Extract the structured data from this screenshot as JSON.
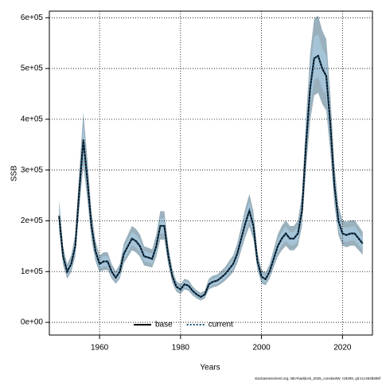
{
  "chart_data": {
    "type": "line",
    "xlabel": "Years",
    "ylabel": "SSB",
    "footer": "stockassessment.org, NEAhaddock_2025_constantW, r19259, git:1cc464b806f",
    "x": [
      1950,
      1951,
      1952,
      1953,
      1954,
      1955,
      1956,
      1957,
      1958,
      1959,
      1960,
      1961,
      1962,
      1963,
      1964,
      1965,
      1966,
      1967,
      1968,
      1969,
      1970,
      1971,
      1972,
      1973,
      1974,
      1975,
      1976,
      1977,
      1978,
      1979,
      1980,
      1981,
      1982,
      1983,
      1984,
      1985,
      1986,
      1987,
      1988,
      1989,
      1990,
      1991,
      1992,
      1993,
      1994,
      1995,
      1996,
      1997,
      1998,
      1999,
      2000,
      2001,
      2002,
      2003,
      2004,
      2005,
      2006,
      2007,
      2008,
      2009,
      2010,
      2011,
      2012,
      2013,
      2014,
      2015,
      2016,
      2017,
      2018,
      2019,
      2020,
      2021,
      2022,
      2023,
      2024,
      2025
    ],
    "series": [
      {
        "name": "base",
        "color": "#000000",
        "linestyle": "solid",
        "band_color": "#8fa8b6",
        "values": [
          210000,
          130000,
          100000,
          115000,
          150000,
          260000,
          360000,
          280000,
          190000,
          140000,
          115000,
          120000,
          120000,
          100000,
          88000,
          100000,
          135000,
          150000,
          165000,
          160000,
          150000,
          130000,
          128000,
          125000,
          150000,
          190000,
          190000,
          130000,
          90000,
          70000,
          65000,
          75000,
          72000,
          62000,
          55000,
          50000,
          55000,
          75000,
          80000,
          82000,
          88000,
          95000,
          105000,
          115000,
          135000,
          165000,
          195000,
          220000,
          190000,
          120000,
          90000,
          85000,
          100000,
          125000,
          150000,
          165000,
          175000,
          165000,
          165000,
          175000,
          220000,
          350000,
          460000,
          520000,
          525000,
          500000,
          485000,
          390000,
          270000,
          200000,
          175000,
          172000,
          175000,
          175000,
          165000,
          155000
        ],
        "upper": [
          242000,
          150000,
          115000,
          132000,
          173000,
          299000,
          414000,
          322000,
          219000,
          161000,
          132000,
          138000,
          138000,
          115000,
          101000,
          115000,
          155000,
          173000,
          190000,
          184000,
          173000,
          150000,
          147000,
          144000,
          173000,
          219000,
          219000,
          150000,
          104000,
          81000,
          75000,
          86000,
          83000,
          71000,
          63000,
          58000,
          63000,
          86000,
          92000,
          94000,
          101000,
          109000,
          121000,
          132000,
          155000,
          190000,
          224000,
          253000,
          219000,
          138000,
          104000,
          98000,
          115000,
          144000,
          173000,
          190000,
          201000,
          190000,
          190000,
          201000,
          253000,
          403000,
          529000,
          598000,
          604000,
          575000,
          558000,
          449000,
          311000,
          230000,
          201000,
          198000,
          201000,
          201000,
          190000,
          178000
        ],
        "lower": [
          181000,
          112000,
          86000,
          99000,
          129000,
          224000,
          310000,
          241000,
          163000,
          120000,
          99000,
          103000,
          103000,
          86000,
          76000,
          86000,
          116000,
          129000,
          142000,
          138000,
          129000,
          112000,
          110000,
          108000,
          129000,
          163000,
          163000,
          112000,
          77000,
          60000,
          56000,
          65000,
          62000,
          53000,
          47000,
          43000,
          47000,
          65000,
          69000,
          71000,
          76000,
          82000,
          90000,
          99000,
          116000,
          142000,
          168000,
          189000,
          163000,
          103000,
          77000,
          73000,
          86000,
          108000,
          129000,
          142000,
          151000,
          142000,
          142000,
          151000,
          189000,
          301000,
          396000,
          447000,
          452000,
          430000,
          417000,
          335000,
          232000,
          172000,
          151000,
          148000,
          151000,
          151000,
          142000,
          133000
        ]
      },
      {
        "name": "current",
        "color": "#1b4f72",
        "linestyle": "dotted",
        "band_color": "#a7c7da",
        "values": [
          210000,
          130000,
          100000,
          115000,
          150000,
          260000,
          360000,
          280000,
          190000,
          140000,
          115000,
          120000,
          120000,
          100000,
          88000,
          100000,
          135000,
          150000,
          165000,
          160000,
          150000,
          130000,
          128000,
          125000,
          150000,
          190000,
          190000,
          130000,
          90000,
          70000,
          65000,
          75000,
          72000,
          62000,
          55000,
          50000,
          55000,
          75000,
          80000,
          82000,
          88000,
          95000,
          105000,
          115000,
          135000,
          165000,
          195000,
          220000,
          190000,
          120000,
          90000,
          85000,
          100000,
          125000,
          150000,
          165000,
          175000,
          165000,
          165000,
          175000,
          220000,
          350000,
          460000,
          520000,
          525000,
          500000,
          485000,
          390000,
          270000,
          200000,
          175000,
          172000,
          175000,
          175000,
          165000,
          155000
        ],
        "upper": [
          227000,
          140000,
          108000,
          124000,
          162000,
          281000,
          389000,
          302000,
          205000,
          151000,
          124000,
          130000,
          130000,
          108000,
          95000,
          108000,
          146000,
          162000,
          178000,
          173000,
          162000,
          140000,
          138000,
          135000,
          162000,
          205000,
          205000,
          140000,
          97000,
          76000,
          70000,
          81000,
          78000,
          67000,
          59000,
          54000,
          59000,
          81000,
          86000,
          89000,
          95000,
          103000,
          113000,
          124000,
          146000,
          178000,
          211000,
          238000,
          205000,
          130000,
          97000,
          92000,
          108000,
          135000,
          162000,
          178000,
          189000,
          178000,
          178000,
          189000,
          238000,
          378000,
          497000,
          562000,
          567000,
          540000,
          524000,
          421000,
          292000,
          216000,
          189000,
          186000,
          189000,
          189000,
          178000,
          167000
        ],
        "lower": [
          193000,
          120000,
          92000,
          106000,
          138000,
          239000,
          331000,
          258000,
          175000,
          129000,
          106000,
          110000,
          110000,
          92000,
          81000,
          92000,
          124000,
          138000,
          152000,
          147000,
          138000,
          120000,
          118000,
          115000,
          138000,
          175000,
          175000,
          120000,
          83000,
          64000,
          60000,
          69000,
          66000,
          57000,
          51000,
          46000,
          51000,
          69000,
          74000,
          75000,
          81000,
          87000,
          97000,
          106000,
          124000,
          152000,
          179000,
          202000,
          175000,
          110000,
          83000,
          78000,
          92000,
          115000,
          138000,
          152000,
          161000,
          152000,
          152000,
          161000,
          202000,
          322000,
          423000,
          478000,
          483000,
          460000,
          446000,
          359000,
          248000,
          184000,
          161000,
          158000,
          161000,
          161000,
          152000,
          143000
        ]
      }
    ],
    "xlim": [
      1947.6,
      2027.4
    ],
    "xticks": [
      1960,
      1980,
      2000,
      2020
    ],
    "ylim": [
      -25000,
      613000
    ],
    "yticks": [
      {
        "value": 0,
        "label": "0e+00"
      },
      {
        "value": 100000,
        "label": "1e+05"
      },
      {
        "value": 200000,
        "label": "2e+05"
      },
      {
        "value": 300000,
        "label": "3e+05"
      },
      {
        "value": 400000,
        "label": "4e+05"
      },
      {
        "value": 500000,
        "label": "5e+05"
      },
      {
        "value": 600000,
        "label": "6e+05"
      }
    ],
    "grid": true,
    "legend": "bottom"
  }
}
